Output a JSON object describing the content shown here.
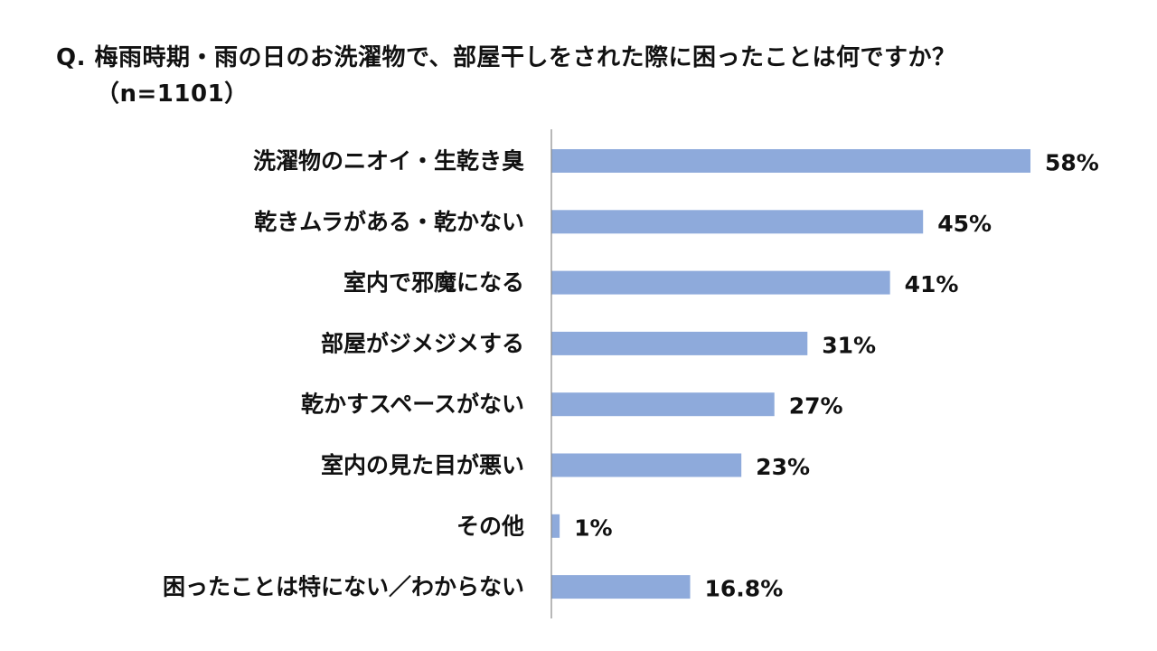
{
  "title": {
    "line1": "Q. 梅雨時期・雨の日のお洗濯物で、部屋干しをされた際に困ったことは何ですか？",
    "line2": "（n=1101）"
  },
  "chart_data": {
    "type": "bar",
    "orientation": "horizontal",
    "title": "Q. 梅雨時期・雨の日のお洗濯物で、部屋干しをされた際に困ったことは何ですか？（n=1101）",
    "categories": [
      "洗濯物のニオイ・生乾き臭",
      "乾きムラがある・乾かない",
      "室内で邪魔になる",
      "部屋がジメジメする",
      "乾かすスペースがない",
      "室内の見た目が悪い",
      "その他",
      "困ったことは特にない／わからない"
    ],
    "values": [
      58,
      45,
      41,
      31,
      27,
      23,
      1,
      16.8
    ],
    "value_labels": [
      "58%",
      "45%",
      "41%",
      "31%",
      "27%",
      "23%",
      "1%",
      "16.8%"
    ],
    "unit": "%",
    "xlim": [
      0,
      70
    ],
    "grid": false,
    "legend": "none",
    "colors": {
      "bar": "#8eaadb",
      "axis": "#888888",
      "text": "#111111"
    }
  }
}
